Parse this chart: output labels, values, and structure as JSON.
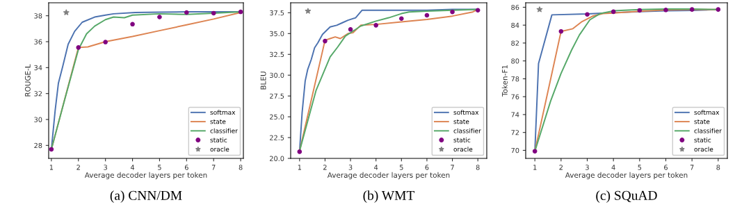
{
  "chart_data": [
    {
      "type": "line",
      "title": "(a) CNN/DM",
      "xlabel": "Average decoder layers per token",
      "ylabel": "ROUGE-L",
      "xlim": [
        0.9,
        8.1
      ],
      "xticks": [
        1,
        2,
        3,
        4,
        5,
        6,
        7,
        8
      ],
      "ylim": [
        27,
        39
      ],
      "yticks": [
        28,
        30,
        32,
        34,
        36,
        38
      ],
      "grid": false,
      "legend": "bottom right",
      "series": [
        {
          "name": "softmax",
          "color": "#4c72b0",
          "x": [
            1,
            1.14,
            1.26,
            1.42,
            1.62,
            1.86,
            2.14,
            2.6,
            3,
            3.3,
            4.1,
            5,
            6,
            7,
            8
          ],
          "values": [
            27.7,
            30.7,
            32.8,
            34.1,
            35.8,
            36.8,
            37.5,
            37.9,
            38.05,
            38.15,
            38.25,
            38.28,
            38.3,
            38.3,
            38.3
          ]
        },
        {
          "name": "state",
          "color": "#dd8452",
          "x": [
            1,
            2,
            2.35,
            3,
            4,
            5,
            6,
            7,
            8
          ],
          "values": [
            27.7,
            35.55,
            35.6,
            36.0,
            36.4,
            36.85,
            37.3,
            37.75,
            38.25
          ]
        },
        {
          "name": "classifier",
          "color": "#55a868",
          "x": [
            1,
            1.5,
            2,
            2.3,
            2.6,
            3,
            3.3,
            3.7,
            4,
            5,
            6,
            7,
            8
          ],
          "values": [
            27.7,
            31.6,
            35.4,
            36.6,
            37.2,
            37.7,
            37.9,
            37.85,
            38.05,
            38.15,
            38.1,
            38.2,
            38.3
          ]
        },
        {
          "name": "static",
          "type": "scatter",
          "marker": "circle",
          "color": "#800080",
          "x": [
            1,
            2,
            3,
            4,
            5,
            6,
            7,
            8
          ],
          "values": [
            27.7,
            35.55,
            35.97,
            37.35,
            37.9,
            38.25,
            38.2,
            38.3
          ]
        },
        {
          "name": "oracle",
          "type": "scatter",
          "marker": "star",
          "color": "#808080",
          "x": [
            1.55
          ],
          "values": [
            38.25
          ]
        }
      ]
    },
    {
      "type": "line",
      "title": "(b) WMT",
      "xlabel": "Average decoder layers per token",
      "ylabel": "BLEU",
      "xlim": [
        0.65,
        8.35
      ],
      "xticks": [
        1,
        2,
        3,
        4,
        5,
        6,
        7,
        8
      ],
      "ylim": [
        20,
        38.7
      ],
      "yticks": [
        {
          "value": 20,
          "label": "20.0"
        },
        {
          "value": 22.5,
          "label": "22.5"
        },
        {
          "value": 25,
          "label": "25.0"
        },
        {
          "value": 27.5,
          "label": "27.5"
        },
        {
          "value": 30,
          "label": "30.0"
        },
        {
          "value": 32.5,
          "label": "32.5"
        },
        {
          "value": 35,
          "label": "35.0"
        },
        {
          "value": 37.5,
          "label": "37.5"
        }
      ],
      "grid": false,
      "legend": "bottom right",
      "series": [
        {
          "name": "softmax",
          "color": "#4c72b0",
          "x": [
            1,
            1.1,
            1.22,
            1.32,
            1.46,
            1.59,
            1.72,
            1.9,
            2.2,
            2.46,
            2.68,
            2.9,
            3.2,
            3.45,
            4,
            5,
            6,
            7,
            8
          ],
          "values": [
            20.9,
            25.5,
            29.3,
            30.7,
            31.9,
            33.3,
            33.9,
            34.9,
            35.8,
            36.0,
            36.3,
            36.6,
            36.9,
            37.8,
            37.8,
            37.8,
            37.8,
            37.9,
            37.9
          ]
        },
        {
          "name": "state",
          "color": "#dd8452",
          "x": [
            1,
            2,
            2.2,
            2.4,
            2.6,
            2.9,
            3.1,
            3.4,
            4,
            5,
            6,
            7,
            7.8,
            8
          ],
          "values": [
            20.9,
            34.2,
            34.4,
            34.6,
            34.4,
            35.0,
            35.1,
            36.0,
            36.1,
            36.4,
            36.7,
            37.1,
            37.6,
            37.9
          ]
        },
        {
          "name": "classifier",
          "color": "#55a868",
          "x": [
            1,
            1.65,
            2.2,
            2.5,
            2.8,
            3.1,
            3.4,
            4,
            4.5,
            5,
            5.3,
            6,
            7,
            8
          ],
          "values": [
            20.9,
            28.2,
            32.2,
            33.4,
            34.7,
            35.3,
            35.9,
            36.5,
            36.9,
            37.4,
            37.6,
            37.7,
            37.8,
            37.9
          ]
        },
        {
          "name": "static",
          "type": "scatter",
          "marker": "circle",
          "color": "#800080",
          "x": [
            1,
            2,
            3,
            4,
            5,
            6,
            7,
            8
          ],
          "values": [
            20.8,
            34.1,
            35.5,
            36.0,
            36.8,
            37.2,
            37.6,
            37.8
          ]
        },
        {
          "name": "oracle",
          "type": "scatter",
          "marker": "star",
          "color": "#808080",
          "x": [
            1.33
          ],
          "values": [
            37.7
          ]
        }
      ]
    },
    {
      "type": "line",
      "title": "(c) SQuAD",
      "xlabel": "Average decoder layers per token",
      "ylabel": "Token-F1",
      "xlim": [
        0.65,
        8.35
      ],
      "xticks": [
        1,
        2,
        3,
        4,
        5,
        6,
        7,
        8
      ],
      "ylim": [
        69.1,
        86.5
      ],
      "yticks": [
        70,
        72,
        74,
        76,
        78,
        80,
        82,
        84,
        86
      ],
      "grid": false,
      "legend": "bottom right",
      "series": [
        {
          "name": "softmax",
          "color": "#4c72b0",
          "x": [
            1,
            1.14,
            1.65,
            3,
            4,
            5,
            6,
            7,
            8
          ],
          "values": [
            69.9,
            79.7,
            85.15,
            85.25,
            85.4,
            85.5,
            85.6,
            85.65,
            85.75
          ]
        },
        {
          "name": "state",
          "color": "#dd8452",
          "x": [
            1,
            2,
            2.45,
            2.8,
            3.2,
            3.6,
            4,
            5,
            6,
            7,
            8
          ],
          "values": [
            69.9,
            83.3,
            83.6,
            84.4,
            85.0,
            85.3,
            85.35,
            85.55,
            85.7,
            85.75,
            85.75
          ]
        },
        {
          "name": "classifier",
          "color": "#55a868",
          "x": [
            1,
            1.6,
            2,
            2.4,
            2.7,
            3.1,
            3.5,
            4,
            5,
            6,
            7,
            8
          ],
          "values": [
            69.9,
            75.5,
            78.6,
            81.2,
            82.9,
            84.6,
            85.3,
            85.6,
            85.75,
            85.8,
            85.8,
            85.75
          ]
        },
        {
          "name": "static",
          "type": "scatter",
          "marker": "circle",
          "color": "#800080",
          "x": [
            1,
            2,
            3,
            4,
            5,
            6,
            7,
            8
          ],
          "values": [
            69.9,
            83.3,
            85.2,
            85.5,
            85.65,
            85.7,
            85.75,
            85.75
          ]
        },
        {
          "name": "oracle",
          "type": "scatter",
          "marker": "star",
          "color": "#808080",
          "x": [
            1.18
          ],
          "values": [
            85.75
          ]
        }
      ]
    }
  ]
}
